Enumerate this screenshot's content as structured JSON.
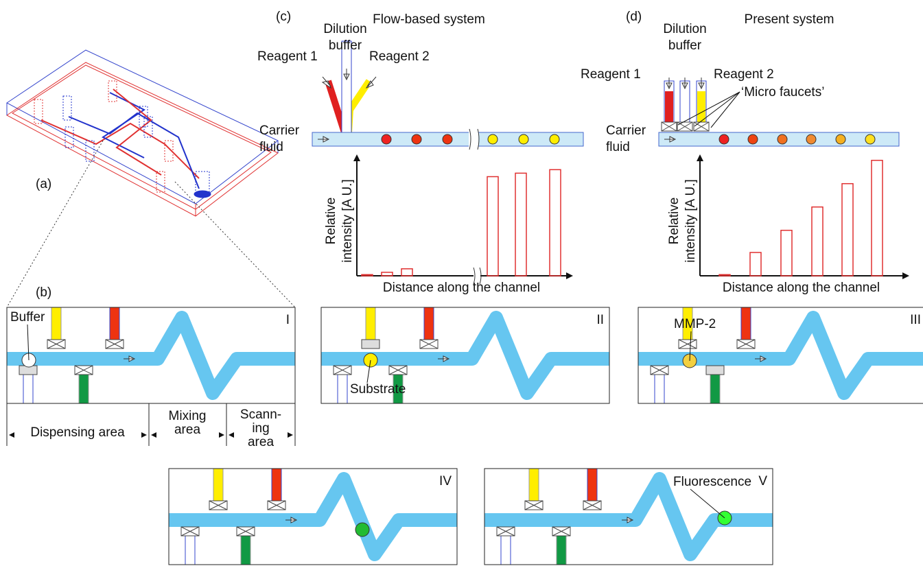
{
  "panel_a": {
    "label": "(a)"
  },
  "panel_b": {
    "label": "(b)",
    "stages": [
      {
        "label": "I",
        "annotation": "Buffer"
      },
      {
        "label": "II",
        "annotation": "Substrate"
      },
      {
        "label": "III",
        "annotation": "MMP-2"
      },
      {
        "label": "IV"
      },
      {
        "label": "V",
        "annotation": "Fluorescence"
      }
    ],
    "areas": [
      [
        "Dispensing area"
      ],
      [
        "Mixing",
        "area"
      ],
      [
        "Scann-",
        "ing",
        "area"
      ]
    ]
  },
  "panel_c": {
    "label": "(c)",
    "title": "Flow-based system",
    "dilution_buffer": [
      "Dilution",
      "buffer"
    ],
    "reagent_1": "Reagent 1",
    "reagent_2": "Reagent 2",
    "carrier_fluid": [
      "Carrier",
      "fluid"
    ],
    "y_axis_label": [
      "Relative",
      "intensity [A U.]"
    ],
    "x_axis_label": "Distance along the channel",
    "bars": [
      1,
      3,
      6,
      85,
      88,
      91
    ]
  },
  "panel_d": {
    "label": "(d)",
    "title": "Present system",
    "dilution_buffer": [
      "Dilution",
      "buffer"
    ],
    "reagent_1": "Reagent 1",
    "reagent_2": "Reagent 2",
    "annotation": "‘Micro faucets’",
    "carrier_fluid": [
      "Carrier",
      "fluid"
    ],
    "y_axis_label": [
      "Relative",
      "intensity [A U.]"
    ],
    "x_axis_label": "Distance along the channel",
    "bars": [
      1,
      20,
      39,
      59,
      79,
      99
    ]
  }
}
